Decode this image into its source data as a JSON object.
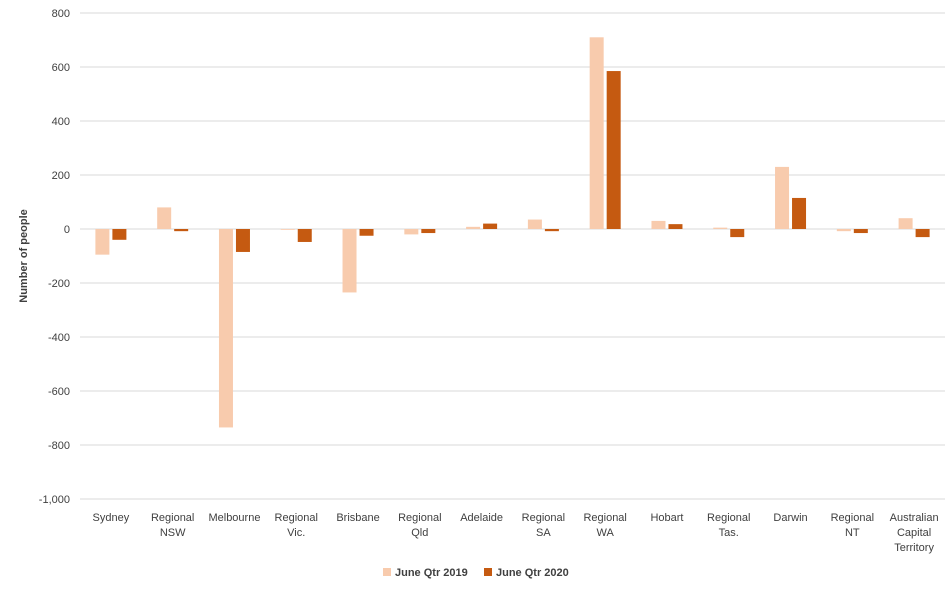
{
  "chart_data": {
    "type": "bar",
    "title": "",
    "xlabel": "",
    "ylabel": "Number of people",
    "ylim": [
      -1000,
      800
    ],
    "yticks": [
      800,
      600,
      400,
      200,
      0,
      -200,
      -400,
      -600,
      -800,
      -1000
    ],
    "ytick_labels": [
      "800",
      "600",
      "400",
      "200",
      "0",
      "-200",
      "-400",
      "-600",
      "-800",
      "-1,000"
    ],
    "grid": true,
    "legend_position": "bottom",
    "categories": [
      [
        "Sydney"
      ],
      [
        "Regional",
        "NSW"
      ],
      [
        "Melbourne"
      ],
      [
        "Regional",
        "Vic."
      ],
      [
        "Brisbane"
      ],
      [
        "Regional",
        "Qld"
      ],
      [
        "Adelaide"
      ],
      [
        "Regional",
        "SA"
      ],
      [
        "Regional",
        "WA"
      ],
      [
        "Hobart"
      ],
      [
        "Regional",
        "Tas."
      ],
      [
        "Darwin"
      ],
      [
        "Regional",
        "NT"
      ],
      [
        "Australian",
        "Capital",
        "Territory"
      ]
    ],
    "series": [
      {
        "name": "June Qtr 2019",
        "color": "#f8cbad",
        "values": [
          -95,
          80,
          -735,
          -3,
          -235,
          -20,
          8,
          35,
          710,
          30,
          5,
          230,
          -8,
          40
        ]
      },
      {
        "name": "June Qtr 2020",
        "color": "#c55a11",
        "values": [
          -40,
          -8,
          -85,
          -48,
          -25,
          -15,
          20,
          -8,
          585,
          18,
          -30,
          115,
          -15,
          -30
        ]
      }
    ]
  }
}
